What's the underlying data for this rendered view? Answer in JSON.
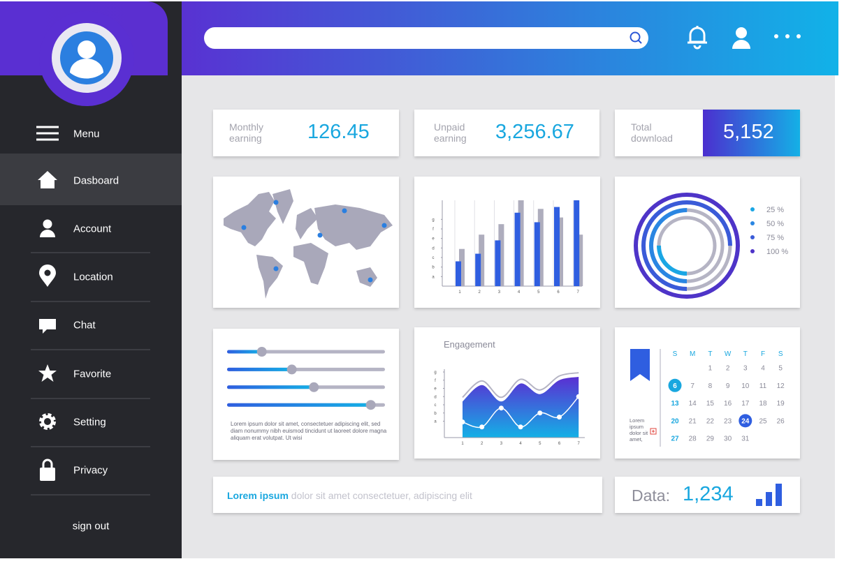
{
  "sidebar": {
    "menu": "Menu",
    "items": [
      "Dasboard",
      "Account",
      "Location",
      "Chat",
      "Favorite",
      "Setting",
      "Privacy"
    ],
    "sign_out": "sign out"
  },
  "stats": [
    {
      "label": "Monthly earning",
      "value": "126.45"
    },
    {
      "label": "Unpaid earning",
      "value": "3,256.67"
    },
    {
      "label": "Total download",
      "value": "5,152"
    }
  ],
  "bar_chart": {
    "type": "bar",
    "categories": [
      "1",
      "2",
      "3",
      "4",
      "5",
      "6",
      "7"
    ],
    "ylim": [
      0,
      9
    ],
    "yticks": [
      {
        "value": 1,
        "label": "a"
      },
      {
        "value": 2,
        "label": "b"
      },
      {
        "value": 3,
        "label": "c"
      },
      {
        "value": 4,
        "label": "d"
      },
      {
        "value": 5,
        "label": "e"
      },
      {
        "value": 6,
        "label": "f"
      },
      {
        "value": 7,
        "label": "g"
      }
    ],
    "series": [
      {
        "color": "#aeadbd",
        "values": [
          3.9,
          5.4,
          6.5,
          9.0,
          8.1,
          7.2,
          5.4
        ]
      },
      {
        "color": "#2f5ee0",
        "values": [
          2.6,
          3.4,
          4.8,
          7.7,
          6.7,
          8.3,
          9.0
        ]
      }
    ]
  },
  "donut": {
    "type": "pie",
    "values": [
      25,
      50,
      75,
      100
    ],
    "value_labels": [
      "25 %",
      "50 %",
      "75 %",
      "100 %"
    ],
    "colors": [
      "#1aa6e4",
      "#2a86e2",
      "#3a5bd8",
      "#4e34c8"
    ]
  },
  "sliders": {
    "xlim": [
      0,
      100
    ],
    "values": [
      22,
      41,
      55,
      91
    ],
    "text": "Lorem ipsum dolor sit amet, consectetuer adipiscing elit, sed diam nonummy nibh euismod tincidunt ut laoreet dolore magna aliquam erat volutpat. Ut wisi"
  },
  "engagement": {
    "type": "line",
    "title": "Engagement",
    "categories": [
      "1",
      "2",
      "3",
      "4",
      "5",
      "6",
      "7"
    ],
    "ylim": [
      -1,
      7
    ],
    "yticks": [
      {
        "value": 1,
        "label": "a"
      },
      {
        "value": 2,
        "label": "b"
      },
      {
        "value": 3,
        "label": "c"
      },
      {
        "value": 4,
        "label": "d"
      },
      {
        "value": 5,
        "label": "e"
      },
      {
        "value": 6,
        "label": "f"
      },
      {
        "value": 7,
        "label": "g"
      }
    ],
    "series": [
      {
        "color": "#4b3fd6",
        "values": [
          3.4,
          5.4,
          3.4,
          5.6,
          4.3,
          6.0,
          6.4
        ]
      },
      {
        "color": "#ffffff",
        "values": [
          0.9,
          0.3,
          2.6,
          0.3,
          2.0,
          1.5,
          4.0
        ]
      }
    ]
  },
  "calendar": {
    "days": [
      "S",
      "M",
      "T",
      "W",
      "T",
      "F",
      "S"
    ],
    "weeks": [
      [
        null,
        null,
        1,
        2,
        3,
        4,
        5
      ],
      [
        6,
        7,
        8,
        9,
        10,
        11,
        12
      ],
      [
        13,
        14,
        15,
        16,
        17,
        18,
        19
      ],
      [
        20,
        21,
        22,
        23,
        24,
        25,
        26
      ],
      [
        27,
        28,
        29,
        30,
        31,
        null,
        null
      ]
    ],
    "selected": [
      6,
      24
    ],
    "note": "Lorem ipsum dolor sit amet,"
  },
  "footer": {
    "lead": "Lorem ipsum",
    "text": "dolor sit amet consectetuer, adipiscing elit"
  },
  "data_card": {
    "label": "Data:",
    "value": "1,234"
  }
}
